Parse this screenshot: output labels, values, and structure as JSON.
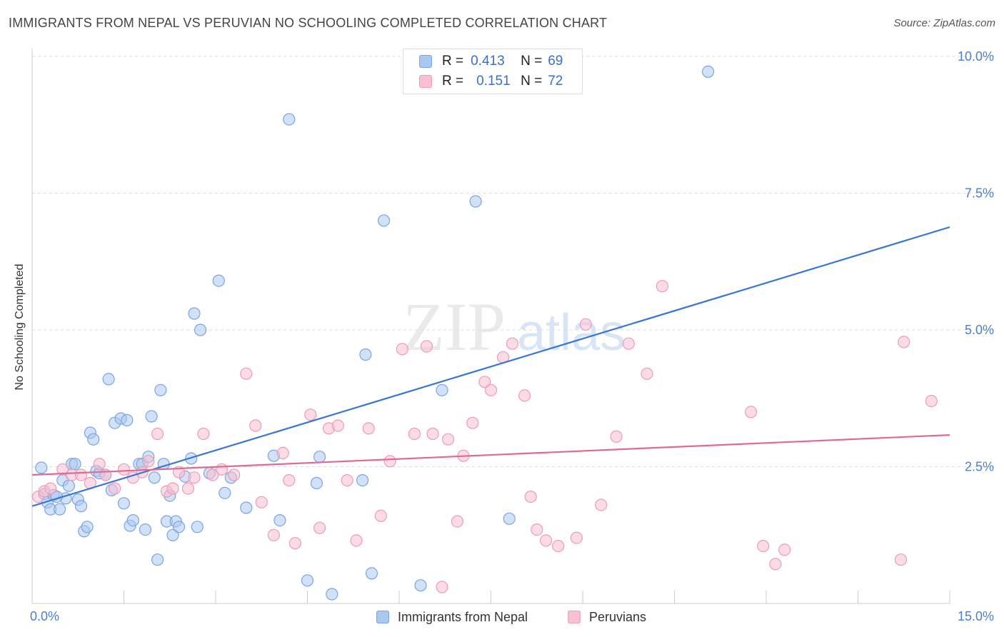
{
  "header": {
    "title": "IMMIGRANTS FROM NEPAL VS PERUVIAN NO SCHOOLING COMPLETED CORRELATION CHART",
    "source": "Source: ZipAtlas.com"
  },
  "watermark": {
    "zip": "ZIP",
    "atlas": "atlas"
  },
  "stats": [
    {
      "r_label": "R =",
      "r_value": "0.413",
      "n_label": "N =",
      "n_value": "69"
    },
    {
      "r_label": "R =",
      "r_value": "0.151",
      "n_label": "N =",
      "n_value": "72"
    }
  ],
  "colors": {
    "nepal_fill": "#a9c9f2",
    "nepal_stroke": "#7aa5df",
    "nepal_line": "#3a76d0",
    "peru_fill": "#f8c0d1",
    "peru_stroke": "#ee9bb5",
    "peru_line": "#e06a95",
    "axis_text": "#4a7fd0",
    "grid": "#dddddd"
  },
  "chart_data": {
    "type": "scatter",
    "title": "IMMIGRANTS FROM NEPAL VS PERUVIAN NO SCHOOLING COMPLETED CORRELATION CHART",
    "xlabel": "",
    "ylabel": "No Schooling Completed",
    "xlim": [
      0,
      15
    ],
    "ylim": [
      0,
      10.5
    ],
    "x_tick_labels": [
      "0.0%",
      "15.0%"
    ],
    "y_ticks": [
      {
        "value": 2.5,
        "label": "2.5%"
      },
      {
        "value": 5.0,
        "label": "5.0%"
      },
      {
        "value": 7.5,
        "label": "7.5%"
      },
      {
        "value": 10.0,
        "label": "10.0%"
      }
    ],
    "grid": "horizontal dashed",
    "legend": "bottom-center",
    "series": [
      {
        "name": "Immigrants from Nepal",
        "r": 0.413,
        "n": 69,
        "trend": {
          "x": [
            0.0,
            15.0
          ],
          "y": [
            1.78,
            6.88
          ]
        },
        "points": [
          [
            0.15,
            2.48
          ],
          [
            0.2,
            2.0
          ],
          [
            0.25,
            1.85
          ],
          [
            0.3,
            1.72
          ],
          [
            0.35,
            1.98
          ],
          [
            0.45,
            1.72
          ],
          [
            0.5,
            2.25
          ],
          [
            0.55,
            1.92
          ],
          [
            0.6,
            2.15
          ],
          [
            0.65,
            2.55
          ],
          [
            0.7,
            2.55
          ],
          [
            0.75,
            1.9
          ],
          [
            0.8,
            1.78
          ],
          [
            0.85,
            1.32
          ],
          [
            0.9,
            1.4
          ],
          [
            0.95,
            3.12
          ],
          [
            1.05,
            2.42
          ],
          [
            1.1,
            2.38
          ],
          [
            1.2,
            2.35
          ],
          [
            1.25,
            4.1
          ],
          [
            1.3,
            2.07
          ],
          [
            1.35,
            3.3
          ],
          [
            1.45,
            3.38
          ],
          [
            1.5,
            1.83
          ],
          [
            1.55,
            3.35
          ],
          [
            1.6,
            1.42
          ],
          [
            1.65,
            1.52
          ],
          [
            1.75,
            2.55
          ],
          [
            1.8,
            2.55
          ],
          [
            1.85,
            1.35
          ],
          [
            1.9,
            2.68
          ],
          [
            1.95,
            3.42
          ],
          [
            2.0,
            2.3
          ],
          [
            2.05,
            0.8
          ],
          [
            2.1,
            3.9
          ],
          [
            2.2,
            1.5
          ],
          [
            2.25,
            1.97
          ],
          [
            2.3,
            1.25
          ],
          [
            2.35,
            1.5
          ],
          [
            2.4,
            1.4
          ],
          [
            2.5,
            2.32
          ],
          [
            2.6,
            2.65
          ],
          [
            2.65,
            5.3
          ],
          [
            2.7,
            1.4
          ],
          [
            2.75,
            5.0
          ],
          [
            2.9,
            2.38
          ],
          [
            3.05,
            5.9
          ],
          [
            3.15,
            2.02
          ],
          [
            3.25,
            2.3
          ],
          [
            3.5,
            1.75
          ],
          [
            3.95,
            2.7
          ],
          [
            4.05,
            1.52
          ],
          [
            4.5,
            0.42
          ],
          [
            4.65,
            2.2
          ],
          [
            4.7,
            2.68
          ],
          [
            4.9,
            0.17
          ],
          [
            5.4,
            2.25
          ],
          [
            5.45,
            4.55
          ],
          [
            5.55,
            0.55
          ],
          [
            5.75,
            7.0
          ],
          [
            6.35,
            0.33
          ],
          [
            6.7,
            3.9
          ],
          [
            7.25,
            7.35
          ],
          [
            7.8,
            1.55
          ],
          [
            11.05,
            9.72
          ],
          [
            4.2,
            8.85
          ],
          [
            1.0,
            3.0
          ],
          [
            0.4,
            1.95
          ],
          [
            2.15,
            2.55
          ]
        ]
      },
      {
        "name": "Peruvians",
        "r": 0.151,
        "n": 72,
        "trend": {
          "x": [
            0.0,
            15.0
          ],
          "y": [
            2.35,
            3.08
          ]
        },
        "points": [
          [
            0.1,
            1.95
          ],
          [
            0.2,
            2.05
          ],
          [
            0.3,
            2.1
          ],
          [
            0.5,
            2.45
          ],
          [
            0.65,
            2.35
          ],
          [
            0.8,
            2.35
          ],
          [
            0.95,
            2.2
          ],
          [
            1.1,
            2.55
          ],
          [
            1.2,
            2.35
          ],
          [
            1.35,
            2.1
          ],
          [
            1.5,
            2.45
          ],
          [
            1.65,
            2.3
          ],
          [
            1.8,
            2.4
          ],
          [
            1.9,
            2.6
          ],
          [
            2.05,
            3.1
          ],
          [
            2.2,
            2.05
          ],
          [
            2.3,
            2.1
          ],
          [
            2.4,
            2.4
          ],
          [
            2.55,
            2.1
          ],
          [
            2.65,
            2.3
          ],
          [
            2.8,
            3.1
          ],
          [
            2.95,
            2.35
          ],
          [
            3.1,
            2.45
          ],
          [
            3.3,
            2.35
          ],
          [
            3.5,
            4.2
          ],
          [
            3.65,
            3.25
          ],
          [
            3.75,
            1.85
          ],
          [
            3.95,
            1.25
          ],
          [
            4.1,
            2.75
          ],
          [
            4.2,
            2.25
          ],
          [
            4.3,
            1.1
          ],
          [
            4.55,
            3.45
          ],
          [
            4.7,
            1.38
          ],
          [
            4.85,
            3.2
          ],
          [
            5.0,
            3.25
          ],
          [
            5.15,
            2.25
          ],
          [
            5.3,
            1.15
          ],
          [
            5.5,
            3.2
          ],
          [
            5.7,
            1.6
          ],
          [
            5.85,
            2.6
          ],
          [
            6.05,
            4.65
          ],
          [
            6.25,
            3.1
          ],
          [
            6.45,
            4.7
          ],
          [
            6.55,
            3.1
          ],
          [
            6.7,
            0.3
          ],
          [
            6.8,
            3.0
          ],
          [
            6.95,
            1.5
          ],
          [
            7.05,
            2.7
          ],
          [
            7.2,
            3.3
          ],
          [
            7.4,
            4.05
          ],
          [
            7.5,
            3.9
          ],
          [
            7.7,
            4.5
          ],
          [
            7.85,
            4.75
          ],
          [
            8.05,
            3.8
          ],
          [
            8.15,
            1.95
          ],
          [
            8.25,
            1.35
          ],
          [
            8.4,
            1.15
          ],
          [
            8.6,
            1.05
          ],
          [
            8.9,
            1.2
          ],
          [
            9.05,
            5.1
          ],
          [
            9.3,
            1.8
          ],
          [
            9.55,
            3.05
          ],
          [
            9.75,
            4.75
          ],
          [
            10.05,
            4.2
          ],
          [
            10.3,
            5.8
          ],
          [
            11.75,
            3.5
          ],
          [
            11.95,
            1.05
          ],
          [
            12.15,
            0.72
          ],
          [
            12.3,
            0.98
          ],
          [
            14.2,
            0.8
          ],
          [
            14.25,
            4.78
          ],
          [
            14.7,
            3.7
          ]
        ]
      }
    ]
  },
  "legend": {
    "items": [
      {
        "label": "Immigrants from Nepal"
      },
      {
        "label": "Peruvians"
      }
    ]
  }
}
